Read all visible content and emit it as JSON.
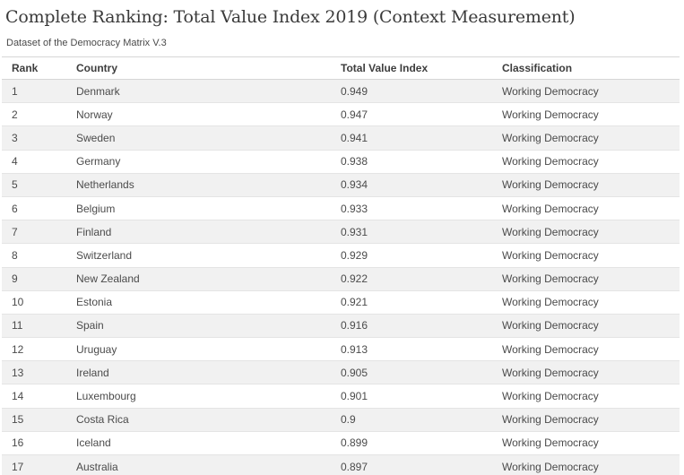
{
  "header": {
    "title": "Complete Ranking: Total Value Index 2019 (Context Measurement)",
    "subtitle": "Dataset of the Democracy Matrix V.3"
  },
  "chart_data": {
    "type": "table",
    "title": "Complete Ranking: Total Value Index 2019 (Context Measurement)",
    "subtitle": "Dataset of the Democracy Matrix V.3",
    "columns": [
      "Rank",
      "Country",
      "Total Value Index",
      "Classification"
    ],
    "rows": [
      [
        1,
        "Denmark",
        0.949,
        "Working Democracy"
      ],
      [
        2,
        "Norway",
        0.947,
        "Working Democracy"
      ],
      [
        3,
        "Sweden",
        0.941,
        "Working Democracy"
      ],
      [
        4,
        "Germany",
        0.938,
        "Working Democracy"
      ],
      [
        5,
        "Netherlands",
        0.934,
        "Working Democracy"
      ],
      [
        6,
        "Belgium",
        0.933,
        "Working Democracy"
      ],
      [
        7,
        "Finland",
        0.931,
        "Working Democracy"
      ],
      [
        8,
        "Switzerland",
        0.929,
        "Working Democracy"
      ],
      [
        9,
        "New Zealand",
        0.922,
        "Working Democracy"
      ],
      [
        10,
        "Estonia",
        0.921,
        "Working Democracy"
      ],
      [
        11,
        "Spain",
        0.916,
        "Working Democracy"
      ],
      [
        12,
        "Uruguay",
        0.913,
        "Working Democracy"
      ],
      [
        13,
        "Ireland",
        0.905,
        "Working Democracy"
      ],
      [
        14,
        "Luxembourg",
        0.901,
        "Working Democracy"
      ],
      [
        15,
        "Costa Rica",
        "0.9",
        "Working Democracy"
      ],
      [
        16,
        "Iceland",
        0.899,
        "Working Democracy"
      ],
      [
        17,
        "Australia",
        0.897,
        "Working Democracy"
      ]
    ],
    "layout": {
      "zebra_stripe_color": "#f1f1f1",
      "row_border_color": "#e4e4e4",
      "header_border_color": "#d6d6d6",
      "text_color": "#4b4b4b",
      "header_text_color": "#3d3d3d",
      "title_color": "#3a3a3a"
    }
  }
}
